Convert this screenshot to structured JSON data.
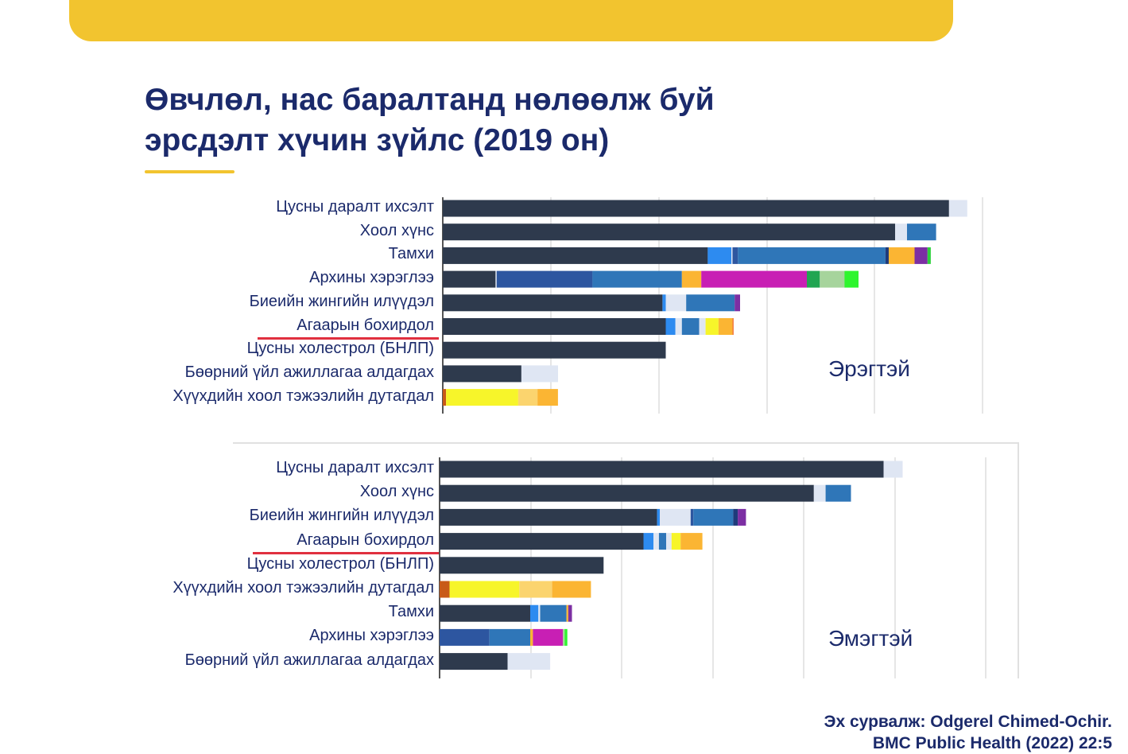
{
  "slide": {
    "title_line1": "Өвчлөл, нас баралтанд нөлөөлж буй",
    "title_line2": "эрсдэлт хүчин зүйлс (2019 он)",
    "source_line1": "Эх сурвалж: Odgerel Chimed-Ochir.",
    "source_line2": "BMC Public Health (2022) 22:5",
    "colors": {
      "banner": "#f2c42f",
      "title": "#1b2a6b",
      "underline": "#e0303f"
    }
  },
  "chart_data": [
    {
      "type": "bar",
      "orientation": "horizontal",
      "stacked": true,
      "panel_label": "Эрэгтэй",
      "grid": true,
      "categories": [
        "Цусны даралт ихсэлт",
        "Хоол хүнс",
        "Тамхи",
        "Архины хэрэглээ",
        "Биеийн жингийн илүүдэл",
        "Агаарын бохирдол",
        "Цусны холестрол (БНЛП)",
        "Бөөрний үйл ажиллагаа алдагдах",
        "Хүүхдийн хоол тэжээлийн дутагдал"
      ],
      "highlighted_category": "Агаарын бохирдол",
      "bars": [
        [
          {
            "v": 47,
            "c": "#2e3a4d"
          },
          {
            "v": 1.7,
            "c": "#dfe6f3"
          }
        ],
        [
          {
            "v": 42,
            "c": "#2e3a4d"
          },
          {
            "v": 1.1,
            "c": "#dfe6f3"
          },
          {
            "v": 2.7,
            "c": "#2f76b8"
          }
        ],
        [
          {
            "v": 24.5,
            "c": "#2e3a4d"
          },
          {
            "v": 0.1,
            "c": "#2e3a4d"
          },
          {
            "v": 2.2,
            "c": "#2d8bf0"
          },
          {
            "v": 0.1,
            "c": "#dfe6f3"
          },
          {
            "v": 0.5,
            "c": "#2d56a0"
          },
          {
            "v": 13.7,
            "c": "#2f76b8"
          },
          {
            "v": 0.3,
            "c": "#1f3b7a"
          },
          {
            "v": 2.4,
            "c": "#fbb533"
          },
          {
            "v": 1.2,
            "c": "#7c2fa3"
          },
          {
            "v": 0.3,
            "c": "#2ed13c"
          }
        ],
        [
          {
            "v": 4.9,
            "c": "#2e3a4d"
          },
          {
            "v": 0.1,
            "c": "#dfe6f3"
          },
          {
            "v": 8.9,
            "c": "#2d56a0"
          },
          {
            "v": 8.3,
            "c": "#2f76b8"
          },
          {
            "v": 1.8,
            "c": "#fbb533"
          },
          {
            "v": 9.8,
            "c": "#c81fb4"
          },
          {
            "v": 1.2,
            "c": "#21a552"
          },
          {
            "v": 2.3,
            "c": "#a6d49c"
          },
          {
            "v": 1.3,
            "c": "#2ef52e"
          }
        ],
        [
          {
            "v": 20.4,
            "c": "#2e3a4d"
          },
          {
            "v": 0.3,
            "c": "#2d8bf0"
          },
          {
            "v": 1.9,
            "c": "#dfe6f3"
          },
          {
            "v": 4.5,
            "c": "#2f76b8"
          },
          {
            "v": 0.5,
            "c": "#7c2fa3"
          }
        ],
        [
          {
            "v": 20.7,
            "c": "#2e3a4d"
          },
          {
            "v": 0.9,
            "c": "#2d8bf0"
          },
          {
            "v": 0.6,
            "c": "#dfe6f3"
          },
          {
            "v": 1.6,
            "c": "#2f76b8"
          },
          {
            "v": 0.6,
            "c": "#dfe6f3"
          },
          {
            "v": 1.2,
            "c": "#f7f52a"
          },
          {
            "v": 1.3,
            "c": "#fbb533"
          },
          {
            "v": 0.1,
            "c": "#f2743d"
          }
        ],
        [
          {
            "v": 20.7,
            "c": "#2e3a4d"
          }
        ],
        [
          {
            "v": 7.3,
            "c": "#2e3a4d"
          },
          {
            "v": 3.4,
            "c": "#dfe6f3"
          }
        ],
        [
          {
            "v": 0.3,
            "c": "#c85a18"
          },
          {
            "v": 6.7,
            "c": "#f7f52a"
          },
          {
            "v": 1.8,
            "c": "#fbd46e"
          },
          {
            "v": 1.9,
            "c": "#fbb533"
          }
        ]
      ]
    },
    {
      "type": "bar",
      "orientation": "horizontal",
      "stacked": true,
      "panel_label": "Эмэгтэй",
      "grid": true,
      "categories": [
        "Цусны даралт ихсэлт",
        "Хоол хүнс",
        "Биеийн жингийн илүүдэл",
        "Агаарын бохирдол",
        "Цусны холестрол (БНЛП)",
        "Хүүхдийн хоол тэжээлийн дутагдал",
        "Тамхи",
        "Архины хэрэглээ",
        "Бөөрний үйл ажиллагаа алдагдах"
      ],
      "highlighted_category": "Агаарын бохирдол",
      "bars": [
        [
          {
            "v": 49,
            "c": "#2e3a4d"
          },
          {
            "v": 2.1,
            "c": "#dfe6f3"
          }
        ],
        [
          {
            "v": 41.3,
            "c": "#2e3a4d"
          },
          {
            "v": 1.3,
            "c": "#dfe6f3"
          },
          {
            "v": 2.8,
            "c": "#2f76b8"
          }
        ],
        [
          {
            "v": 24,
            "c": "#2e3a4d"
          },
          {
            "v": 0.3,
            "c": "#2d8bf0"
          },
          {
            "v": 3.4,
            "c": "#dfe6f3"
          },
          {
            "v": 0.3,
            "c": "#2d56a0"
          },
          {
            "v": 4.4,
            "c": "#2f76b8"
          },
          {
            "v": 0.5,
            "c": "#1f3b7a"
          },
          {
            "v": 0.9,
            "c": "#7c2fa3"
          }
        ],
        [
          {
            "v": 22.5,
            "c": "#2e3a4d"
          },
          {
            "v": 1.1,
            "c": "#2d8bf0"
          },
          {
            "v": 0.6,
            "c": "#dfe6f3"
          },
          {
            "v": 0.8,
            "c": "#2f76b8"
          },
          {
            "v": 0.6,
            "c": "#dfe6f3"
          },
          {
            "v": 1.0,
            "c": "#f7f52a"
          },
          {
            "v": 2.4,
            "c": "#fbb533"
          }
        ],
        [
          {
            "v": 18.1,
            "c": "#2e3a4d"
          }
        ],
        [
          {
            "v": 1.1,
            "c": "#c85a18"
          },
          {
            "v": 7.7,
            "c": "#f7f52a"
          },
          {
            "v": 3.6,
            "c": "#fbd46e"
          },
          {
            "v": 4.3,
            "c": "#fbb533"
          }
        ],
        [
          {
            "v": 10,
            "c": "#2e3a4d"
          },
          {
            "v": 0.9,
            "c": "#2d8bf0"
          },
          {
            "v": 0.2,
            "c": "#dfe6f3"
          },
          {
            "v": 2.9,
            "c": "#2f76b8"
          },
          {
            "v": 0.2,
            "c": "#fbb533"
          },
          {
            "v": 0.4,
            "c": "#7c2fa3"
          }
        ],
        [
          {
            "v": 5.5,
            "c": "#2d56a0"
          },
          {
            "v": 4.5,
            "c": "#2f76b8"
          },
          {
            "v": 0.3,
            "c": "#fbb533"
          },
          {
            "v": 3.3,
            "c": "#c81fb4"
          },
          {
            "v": 0.2,
            "c": "#a6d49c"
          },
          {
            "v": 0.3,
            "c": "#2ef52e"
          }
        ],
        [
          {
            "v": 7.5,
            "c": "#2e3a4d"
          },
          {
            "v": 4.7,
            "c": "#dfe6f3"
          }
        ]
      ]
    }
  ]
}
